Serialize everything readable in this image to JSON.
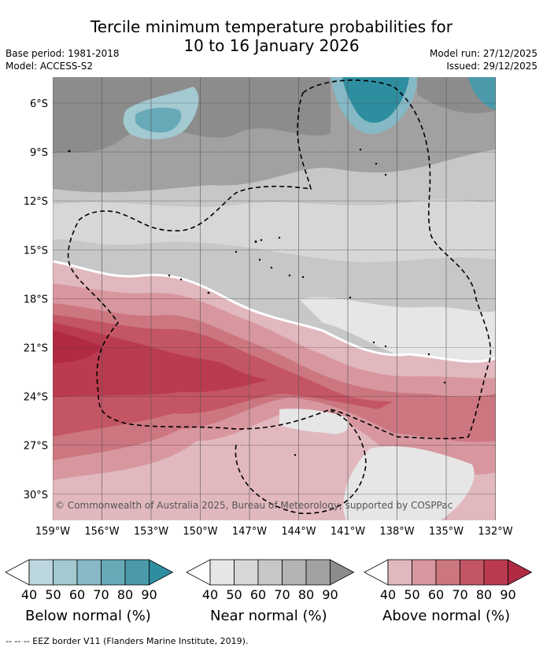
{
  "title_line1": "Tercile minimum temperature probabilities for",
  "title_line2": "10 to 16 January 2026",
  "base_period": "Base period: 1981-2018",
  "model": "Model: ACCESS-S2",
  "model_run": "Model run: 27/12/2025",
  "issued": "Issued: 29/12/2025",
  "lat_labels": [
    "6°S",
    "9°S",
    "12°S",
    "15°S",
    "18°S",
    "21°S",
    "24°S",
    "27°S",
    "30°S"
  ],
  "lon_labels": [
    "159°W",
    "156°W",
    "153°W",
    "150°W",
    "147°W",
    "144°W",
    "141°W",
    "138°W",
    "135°W",
    "132°W"
  ],
  "copyright": "© Commonwealth of Australia 2025, Bureau of Meteorology, supported by COSPPac",
  "legends": [
    {
      "label": "Below normal (%)",
      "ticks": [
        "40",
        "50",
        "60",
        "70",
        "80",
        "90"
      ],
      "colors": [
        "#ffffff",
        "#bcd7dd",
        "#a3c9d1",
        "#86b9c5",
        "#68a9b8",
        "#4a9aab",
        "#2e8ea0"
      ]
    },
    {
      "label": "Near normal (%)",
      "ticks": [
        "40",
        "50",
        "60",
        "70",
        "80",
        "90"
      ],
      "colors": [
        "#ffffff",
        "#e6e6e6",
        "#d7d7d7",
        "#c7c7c7",
        "#b4b4b4",
        "#a1a1a1",
        "#8c8c8c"
      ]
    },
    {
      "label": "Above normal (%)",
      "ticks": [
        "40",
        "50",
        "60",
        "70",
        "80",
        "90"
      ],
      "colors": [
        "#ffffff",
        "#e2b8bf",
        "#d8979f",
        "#cc7680",
        "#c45564",
        "#ba3b4f",
        "#b02a43"
      ]
    }
  ],
  "footnote": "--  --  -- EEZ border V11 (Flanders Marine Institute, 2019)."
}
